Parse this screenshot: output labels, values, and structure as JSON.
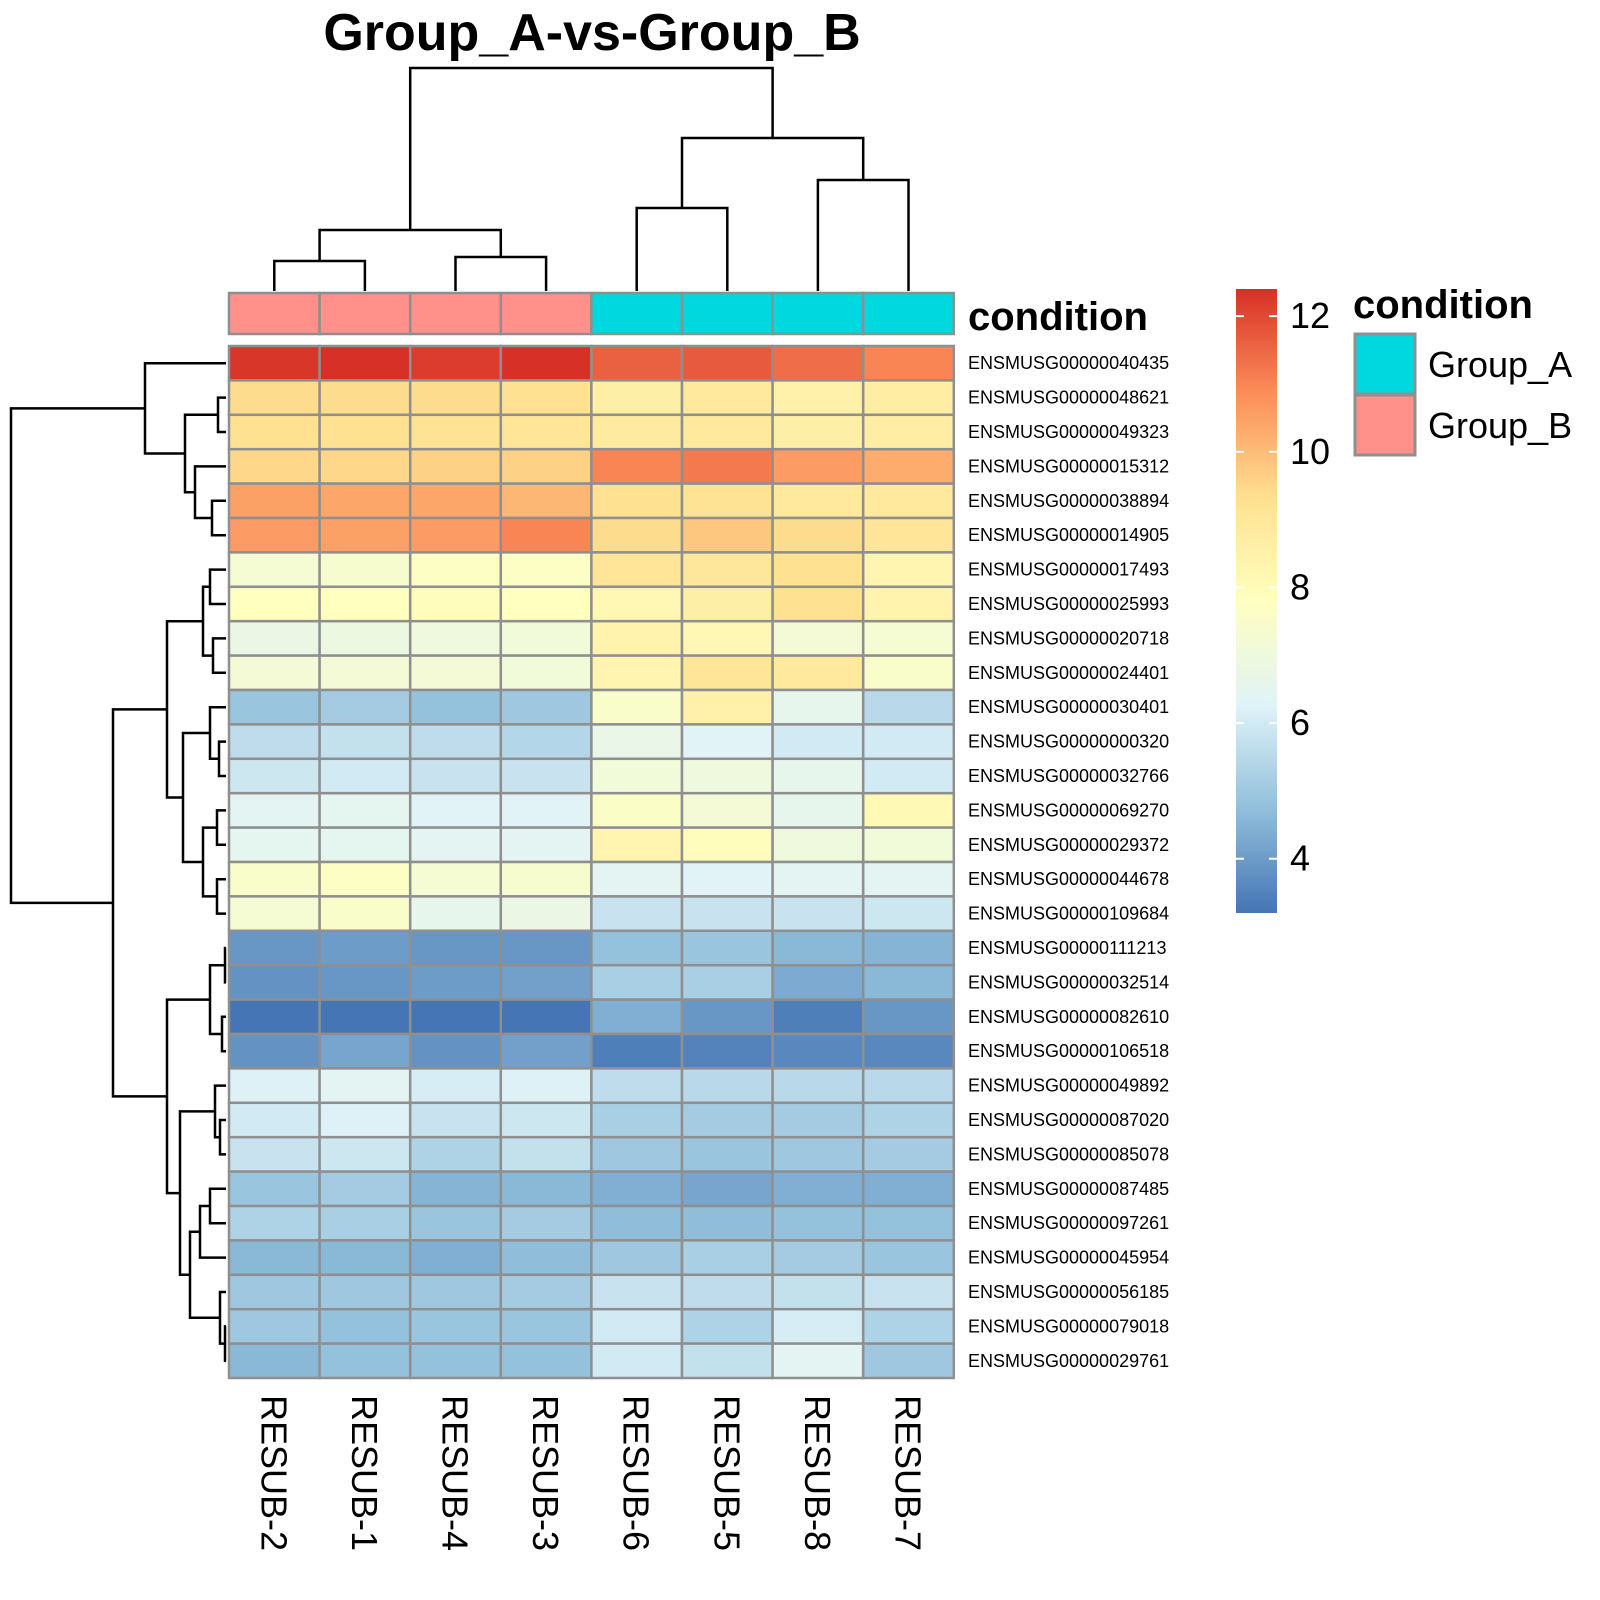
{
  "chart_data": {
    "type": "heatmap",
    "title": "Group_A-vs-Group_B",
    "columns": [
      "RESUB-2",
      "RESUB-1",
      "RESUB-4",
      "RESUB-3",
      "RESUB-6",
      "RESUB-5",
      "RESUB-8",
      "RESUB-7"
    ],
    "rows": [
      "ENSMUSG00000040435",
      "ENSMUSG00000048621",
      "ENSMUSG00000049323",
      "ENSMUSG00000015312",
      "ENSMUSG00000038894",
      "ENSMUSG00000014905",
      "ENSMUSG00000017493",
      "ENSMUSG00000025993",
      "ENSMUSG00000020718",
      "ENSMUSG00000024401",
      "ENSMUSG00000030401",
      "ENSMUSG00000000320",
      "ENSMUSG00000032766",
      "ENSMUSG00000069270",
      "ENSMUSG00000029372",
      "ENSMUSG00000044678",
      "ENSMUSG00000109684",
      "ENSMUSG00000111213",
      "ENSMUSG00000032514",
      "ENSMUSG00000082610",
      "ENSMUSG00000106518",
      "ENSMUSG00000049892",
      "ENSMUSG00000087020",
      "ENSMUSG00000085078",
      "ENSMUSG00000087485",
      "ENSMUSG00000097261",
      "ENSMUSG00000045954",
      "ENSMUSG00000056185",
      "ENSMUSG00000079018",
      "ENSMUSG00000029761"
    ],
    "values": [
      [
        12.3,
        12.4,
        12.2,
        12.4,
        11.6,
        11.7,
        11.4,
        11.0
      ],
      [
        9.4,
        9.4,
        9.4,
        9.3,
        8.6,
        8.9,
        8.5,
        8.7
      ],
      [
        9.3,
        9.3,
        9.2,
        9.1,
        8.8,
        8.9,
        8.6,
        8.7
      ],
      [
        9.5,
        9.5,
        9.6,
        9.6,
        11.0,
        11.2,
        10.6,
        10.3
      ],
      [
        10.5,
        10.4,
        10.4,
        10.1,
        9.3,
        9.2,
        8.9,
        8.9
      ],
      [
        10.6,
        10.5,
        10.6,
        11.0,
        9.4,
        9.8,
        9.4,
        9.1
      ],
      [
        7.3,
        7.4,
        7.7,
        7.7,
        9.1,
        9.0,
        9.3,
        8.3
      ],
      [
        7.8,
        7.8,
        7.9,
        7.8,
        8.2,
        8.6,
        9.3,
        8.4
      ],
      [
        6.8,
        6.9,
        7.0,
        7.1,
        8.4,
        8.2,
        7.2,
        7.3
      ],
      [
        7.2,
        7.2,
        7.2,
        7.1,
        8.3,
        9.1,
        8.9,
        7.5
      ],
      [
        4.9,
        5.1,
        4.8,
        5.0,
        7.5,
        8.5,
        6.6,
        5.5
      ],
      [
        5.6,
        5.7,
        5.6,
        5.4,
        6.7,
        6.3,
        6.0,
        6.0
      ],
      [
        5.9,
        6.0,
        5.8,
        5.8,
        7.1,
        7.0,
        6.6,
        6.0
      ],
      [
        6.4,
        6.5,
        6.3,
        6.3,
        7.6,
        7.2,
        6.6,
        8.1
      ],
      [
        6.5,
        6.5,
        6.4,
        6.4,
        8.3,
        7.9,
        7.0,
        7.1
      ],
      [
        7.5,
        7.7,
        7.3,
        7.4,
        6.4,
        6.3,
        6.4,
        6.4
      ],
      [
        7.3,
        7.5,
        6.6,
        6.8,
        5.8,
        5.8,
        5.8,
        5.9
      ],
      [
        3.9,
        4.0,
        3.9,
        3.9,
        4.8,
        4.9,
        4.6,
        4.5
      ],
      [
        3.8,
        3.9,
        4.0,
        4.1,
        5.2,
        5.2,
        4.3,
        4.6
      ],
      [
        3.2,
        3.2,
        3.2,
        3.2,
        4.4,
        3.9,
        3.4,
        3.9
      ],
      [
        3.8,
        4.2,
        3.8,
        4.1,
        3.4,
        3.5,
        3.6,
        3.6
      ],
      [
        6.2,
        6.4,
        6.1,
        6.2,
        5.6,
        5.5,
        5.5,
        5.5
      ],
      [
        6.0,
        6.2,
        5.8,
        5.9,
        5.2,
        5.1,
        5.1,
        5.3
      ],
      [
        5.8,
        5.9,
        5.3,
        5.7,
        5.0,
        4.9,
        5.0,
        5.1
      ],
      [
        4.9,
        5.1,
        4.5,
        4.6,
        4.4,
        4.2,
        4.4,
        4.4
      ],
      [
        5.3,
        5.2,
        4.9,
        5.1,
        4.7,
        4.7,
        4.8,
        4.8
      ],
      [
        4.6,
        4.6,
        4.4,
        4.7,
        5.0,
        5.2,
        5.1,
        4.9
      ],
      [
        5.0,
        5.0,
        5.0,
        5.1,
        5.8,
        5.6,
        5.7,
        5.8
      ],
      [
        5.0,
        4.8,
        4.9,
        4.9,
        6.0,
        5.3,
        6.1,
        5.3
      ],
      [
        4.6,
        4.8,
        4.8,
        4.8,
        6.0,
        5.7,
        6.4,
        5.0
      ]
    ],
    "annotation": {
      "name": "condition",
      "column_groups": [
        "Group_B",
        "Group_B",
        "Group_B",
        "Group_B",
        "Group_A",
        "Group_A",
        "Group_A",
        "Group_A"
      ],
      "legend": [
        {
          "label": "Group_A",
          "color": "#00d8e0"
        },
        {
          "label": "Group_B",
          "color": "#ff918a"
        }
      ]
    },
    "colorbar": {
      "range": [
        3.2,
        12.4
      ],
      "ticks": [
        4,
        6,
        8,
        10,
        12
      ],
      "palette": [
        "#4575b4",
        "#91bfdb",
        "#e0f3f8",
        "#ffffbf",
        "#fee090",
        "#fc8d59",
        "#d73027"
      ]
    }
  }
}
